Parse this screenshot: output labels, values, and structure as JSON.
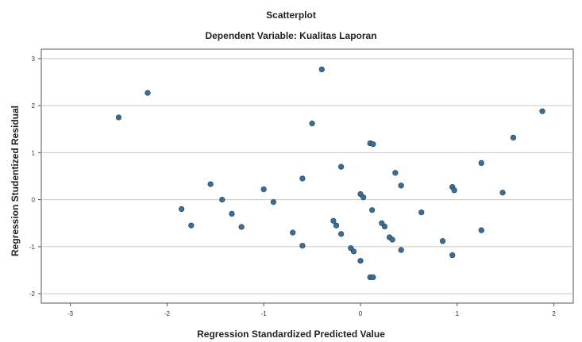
{
  "chart_data": {
    "type": "scatter",
    "title": "Scatterplot",
    "subtitle": "Dependent Variable: Kualitas Laporan",
    "xlabel": "Regression Standardized Predicted Value",
    "ylabel": "Regression Studentized Residual",
    "xlim": [
      -3.3,
      2.2
    ],
    "ylim": [
      -2.2,
      3.2
    ],
    "xticks": [
      -3,
      -2,
      -1,
      0,
      1,
      2
    ],
    "yticks": [
      -2,
      -1,
      0,
      1,
      2,
      3
    ],
    "grid": "horizontal",
    "marker_color": "#3a6e96",
    "points": [
      {
        "x": -2.5,
        "y": 1.75
      },
      {
        "x": -2.2,
        "y": 2.27
      },
      {
        "x": -1.85,
        "y": -0.2
      },
      {
        "x": -1.75,
        "y": -0.55
      },
      {
        "x": -1.55,
        "y": 0.33
      },
      {
        "x": -1.43,
        "y": 0.0
      },
      {
        "x": -1.33,
        "y": -0.3
      },
      {
        "x": -1.23,
        "y": -0.58
      },
      {
        "x": -1.0,
        "y": 0.22
      },
      {
        "x": -0.9,
        "y": -0.05
      },
      {
        "x": -0.7,
        "y": -0.7
      },
      {
        "x": -0.6,
        "y": 0.45
      },
      {
        "x": -0.6,
        "y": -0.98
      },
      {
        "x": -0.5,
        "y": 1.62
      },
      {
        "x": -0.4,
        "y": 2.77
      },
      {
        "x": -0.28,
        "y": -0.45
      },
      {
        "x": -0.25,
        "y": -0.55
      },
      {
        "x": -0.2,
        "y": 0.7
      },
      {
        "x": -0.2,
        "y": -0.73
      },
      {
        "x": -0.1,
        "y": -1.03
      },
      {
        "x": -0.07,
        "y": -1.1
      },
      {
        "x": 0.0,
        "y": 0.12
      },
      {
        "x": 0.03,
        "y": 0.05
      },
      {
        "x": 0.0,
        "y": -1.3
      },
      {
        "x": 0.1,
        "y": 1.2
      },
      {
        "x": 0.13,
        "y": 1.18
      },
      {
        "x": 0.12,
        "y": -0.22
      },
      {
        "x": 0.1,
        "y": -1.65
      },
      {
        "x": 0.13,
        "y": -1.65
      },
      {
        "x": 0.22,
        "y": -0.5
      },
      {
        "x": 0.25,
        "y": -0.57
      },
      {
        "x": 0.3,
        "y": -0.8
      },
      {
        "x": 0.33,
        "y": -0.85
      },
      {
        "x": 0.36,
        "y": 0.57
      },
      {
        "x": 0.42,
        "y": 0.3
      },
      {
        "x": 0.42,
        "y": -1.07
      },
      {
        "x": 0.63,
        "y": -0.27
      },
      {
        "x": 0.85,
        "y": -0.88
      },
      {
        "x": 0.95,
        "y": 0.27
      },
      {
        "x": 0.97,
        "y": 0.2
      },
      {
        "x": 0.95,
        "y": -1.18
      },
      {
        "x": 1.25,
        "y": 0.78
      },
      {
        "x": 1.25,
        "y": -0.65
      },
      {
        "x": 1.47,
        "y": 0.15
      },
      {
        "x": 1.58,
        "y": 1.32
      },
      {
        "x": 1.88,
        "y": 1.88
      }
    ]
  }
}
